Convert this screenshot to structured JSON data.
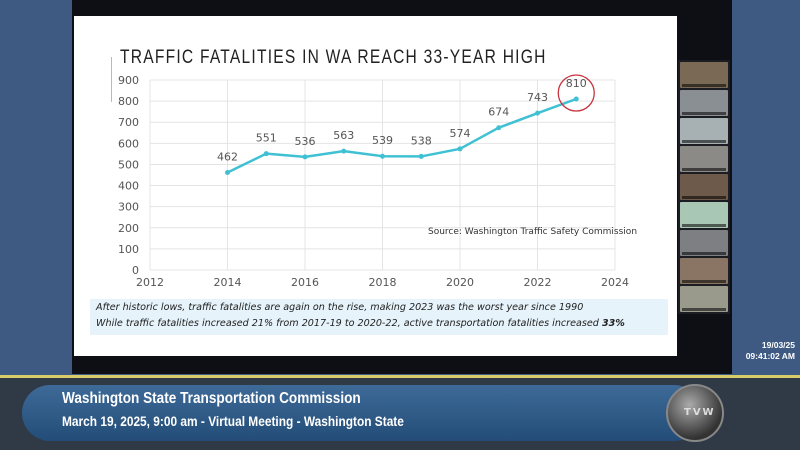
{
  "chart_data": {
    "type": "line",
    "title": "TRAFFIC FATALITIES IN WA REACH 33-YEAR HIGH",
    "x": [
      2014,
      2015,
      2016,
      2017,
      2018,
      2019,
      2020,
      2021,
      2022,
      2023
    ],
    "series": [
      {
        "name": "Traffic fatalities",
        "values": [
          462,
          551,
          536,
          563,
          539,
          538,
          574,
          674,
          743,
          810
        ]
      }
    ],
    "xlim": [
      2012,
      2024
    ],
    "ylim": [
      0,
      900
    ],
    "xticks": [
      2012,
      2014,
      2016,
      2018,
      2020,
      2022,
      2024
    ],
    "yticks": [
      0,
      100,
      200,
      300,
      400,
      500,
      600,
      700,
      800,
      900
    ],
    "grid": true,
    "highlight": {
      "x": 2023,
      "value": 810,
      "shape": "circle"
    },
    "annotation": "Source:  Washington Traffic Safety Commission",
    "line_color": "#3fc1d3",
    "highlight_color": "#c8323c"
  },
  "notes": {
    "line1": "After historic lows, traffic fatalities are again on the rise, making 2023 was the worst year since 1990",
    "line2_prefix": "While traffic fatalities increased 21% from 2017-19 to 2020-22, active transportation fatalities increased ",
    "line2_bold": "33%"
  },
  "timestamp": {
    "date": "19/03/25",
    "time": "09:41:02 AM"
  },
  "banner": {
    "title": "Washington State Transportation Commission",
    "subtitle": "March 19, 2025, 9:00 am - Virtual Meeting - Washington State",
    "logo_text": "TVW"
  }
}
